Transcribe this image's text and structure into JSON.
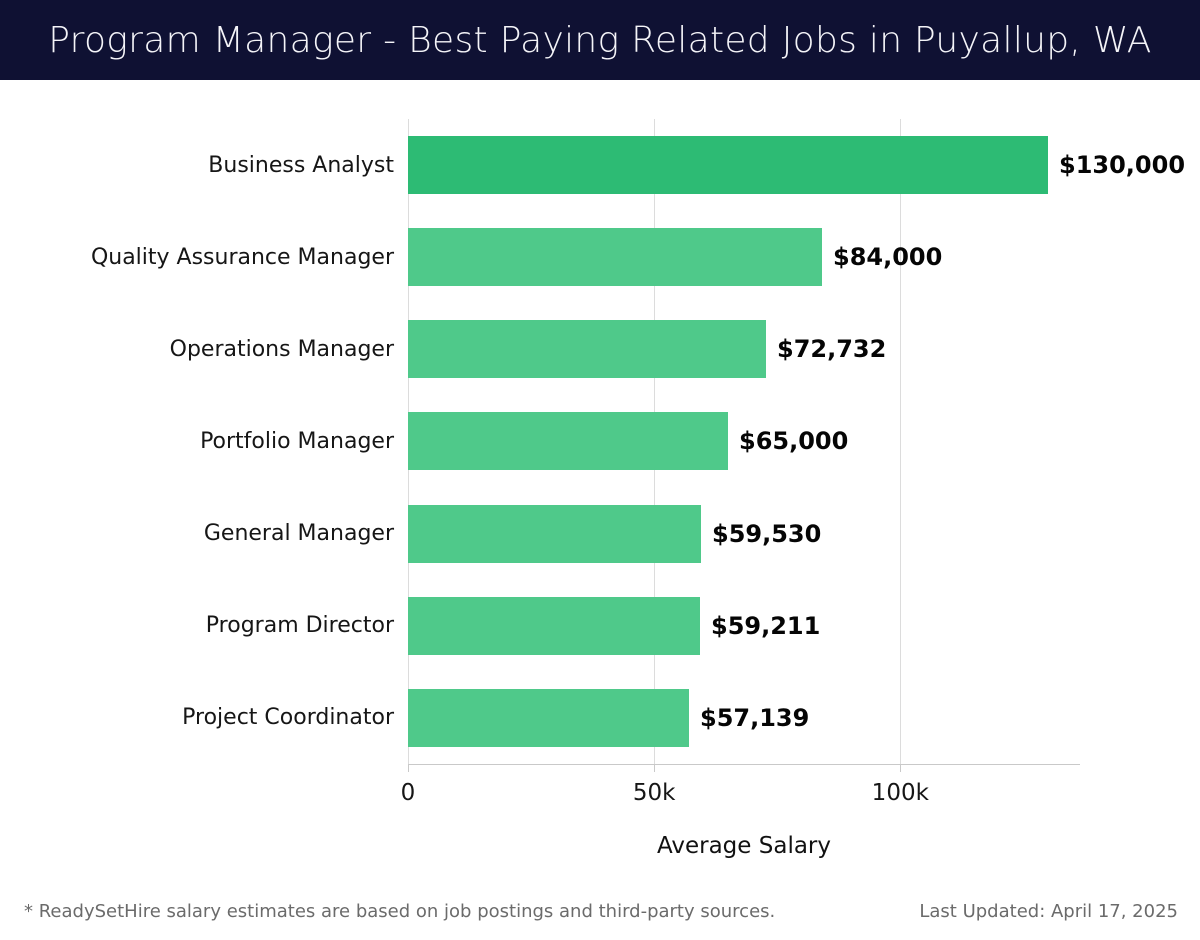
{
  "header": {
    "title": "Program Manager - Best Paying Related Jobs in Puyallup, WA"
  },
  "chart_data": {
    "type": "bar",
    "orientation": "horizontal",
    "title": "Program Manager - Best Paying Related Jobs in Puyallup, WA",
    "xlabel": "Average Salary",
    "categories": [
      "Business Analyst",
      "Quality Assurance Manager",
      "Operations Manager",
      "Portfolio Manager",
      "General Manager",
      "Program Director",
      "Project Coordinator"
    ],
    "values": [
      130000,
      84000,
      72732,
      65000,
      59530,
      59211,
      57139
    ],
    "value_labels": [
      "$130,000",
      "$84,000",
      "$72,732",
      "$65,000",
      "$59,530",
      "$59,211",
      "$57,139"
    ],
    "xlim": [
      0,
      136500
    ],
    "xticks": [
      {
        "value": 0,
        "label": "0"
      },
      {
        "value": 50000,
        "label": "50k"
      },
      {
        "value": 100000,
        "label": "100k"
      }
    ],
    "grid": "vertical",
    "legend": "none",
    "colors": {
      "highlight_bar": "#2dbb74",
      "bar": "#4fc98a",
      "header_background": "#0f1133",
      "gridline": "#dcdcdc",
      "axis": "#c9c9c9"
    }
  },
  "footer": {
    "note": "* ReadySetHire salary estimates are based on job postings and third-party sources.",
    "last_updated": "Last Updated: April 17, 2025"
  }
}
